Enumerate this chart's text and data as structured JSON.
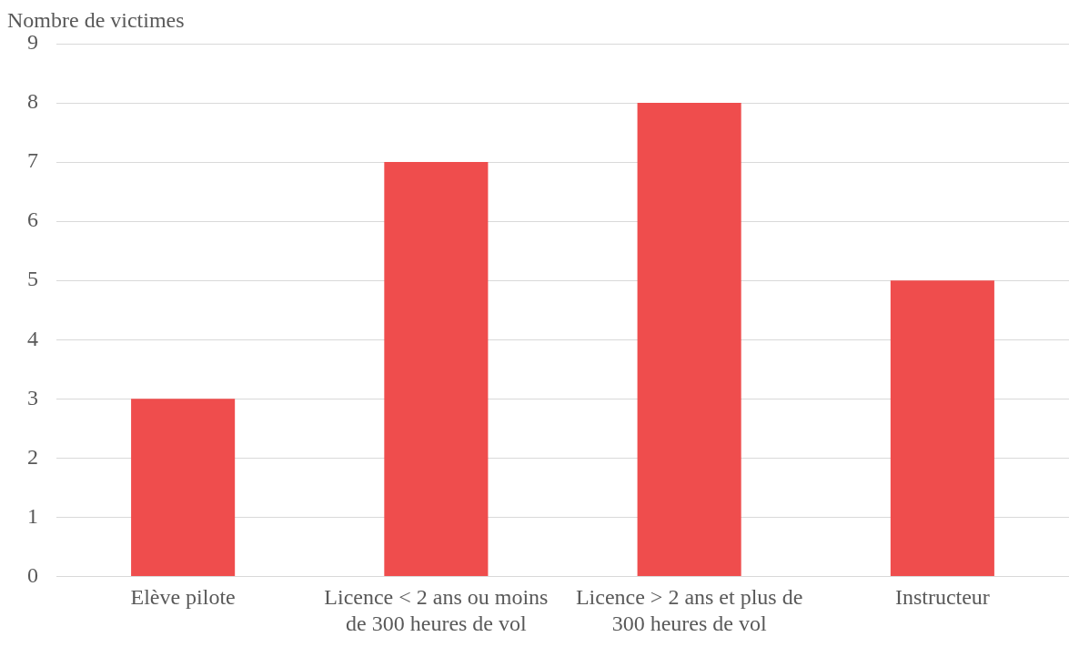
{
  "chart_data": {
    "type": "bar",
    "ylabel": "Nombre de victimes",
    "categories": [
      "Elève pilote",
      "Licence < 2 ans ou moins de 300 heures de vol",
      "Licence > 2 ans et plus de 300 heures de vol",
      "Instructeur"
    ],
    "values": [
      3,
      7,
      8,
      5
    ],
    "color": "#ef4d4d",
    "ylim": [
      0,
      9
    ],
    "yticks": [
      0,
      1,
      2,
      3,
      4,
      5,
      6,
      7,
      8,
      9
    ],
    "grid": "y",
    "legend": false
  }
}
